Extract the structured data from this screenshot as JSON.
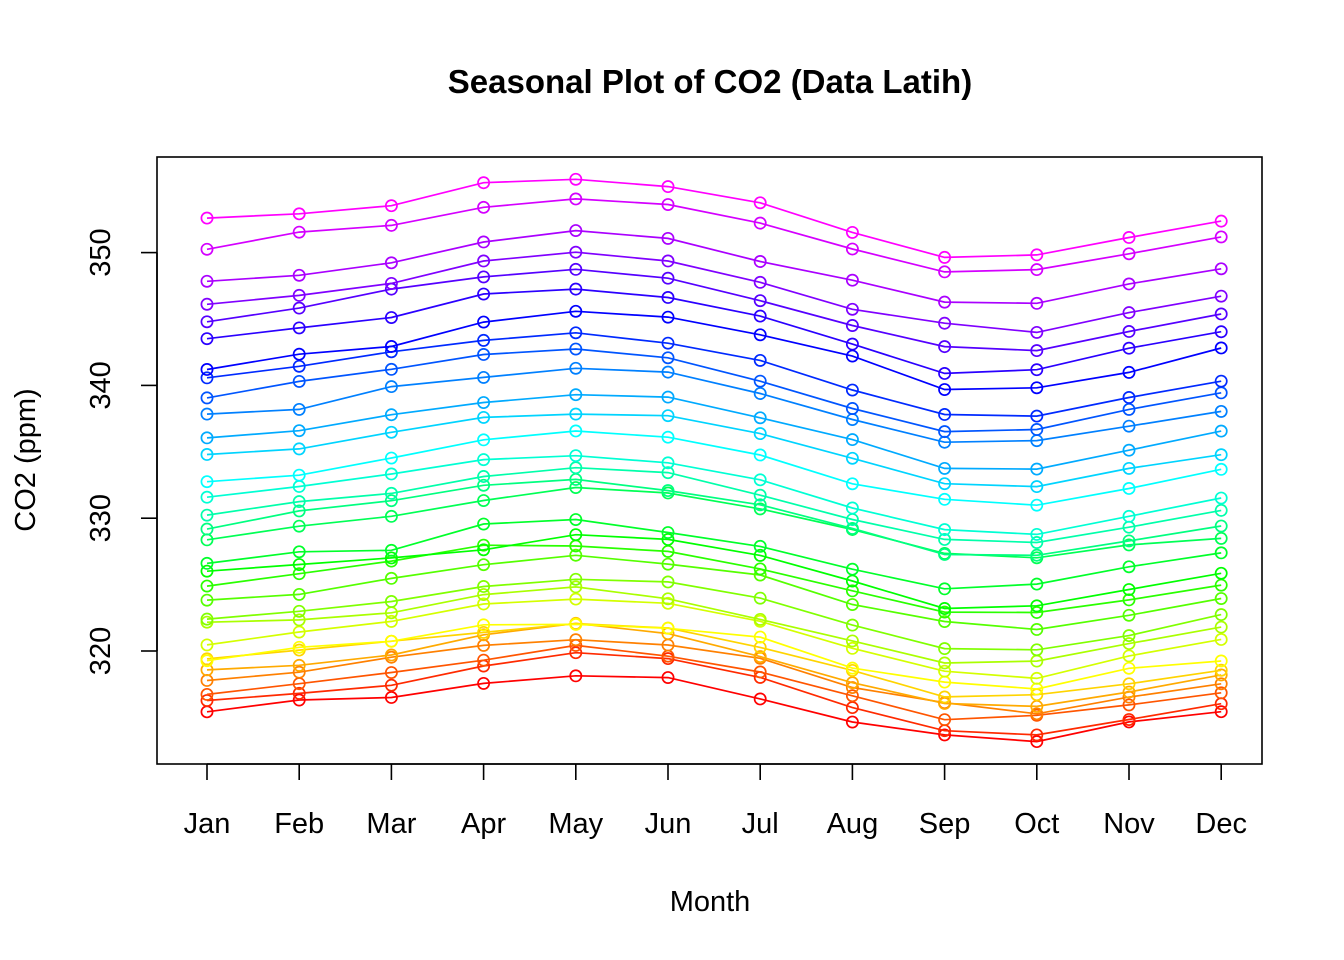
{
  "chart_data": {
    "type": "line",
    "title": "Seasonal Plot of CO2 (Data Latih)",
    "xlabel": "Month",
    "ylabel": "CO2 (ppm)",
    "categories": [
      "Jan",
      "Feb",
      "Mar",
      "Apr",
      "May",
      "Jun",
      "Jul",
      "Aug",
      "Sep",
      "Oct",
      "Nov",
      "Dec"
    ],
    "yticks": [
      320,
      330,
      340,
      350
    ],
    "ylim": [
      311.6,
      356.6
    ],
    "grid": false,
    "legend": "none",
    "palette": "rainbow (red → yellow → green → cyan → blue → magenta)",
    "series": [
      {
        "color": "#ff0000",
        "values": [
          315.42,
          316.31,
          316.5,
          317.56,
          318.13,
          318.0,
          316.39,
          314.65,
          313.68,
          313.18,
          314.66,
          315.43
        ]
      },
      {
        "color": "#ff2a00",
        "values": [
          316.27,
          316.81,
          317.42,
          318.87,
          319.87,
          319.43,
          318.01,
          315.74,
          314.0,
          313.68,
          314.84,
          316.03
        ]
      },
      {
        "color": "#ff5500",
        "values": [
          316.73,
          317.54,
          318.38,
          319.31,
          320.42,
          319.61,
          318.42,
          316.63,
          314.83,
          315.16,
          315.94,
          316.85
        ]
      },
      {
        "color": "#ff8000",
        "values": [
          317.78,
          318.4,
          319.53,
          320.42,
          320.85,
          320.45,
          319.45,
          317.25,
          316.11,
          315.27,
          316.53,
          317.53
        ]
      },
      {
        "color": "#ffaa00",
        "values": [
          318.58,
          318.92,
          319.7,
          321.22,
          322.08,
          321.31,
          319.58,
          317.61,
          316.05,
          315.83,
          316.91,
          318.2
        ]
      },
      {
        "color": "#ffd400",
        "values": [
          319.41,
          320.07,
          320.74,
          321.4,
          322.06,
          321.73,
          320.27,
          318.54,
          316.54,
          316.71,
          317.53,
          318.55
        ]
      },
      {
        "color": "#ffff00",
        "values": [
          319.27,
          320.28,
          320.73,
          321.97,
          322.0,
          321.71,
          321.05,
          318.71,
          317.66,
          317.14,
          318.7,
          319.25
        ]
      },
      {
        "color": "#d4ff00",
        "values": [
          320.46,
          321.43,
          322.23,
          323.54,
          323.91,
          323.59,
          322.24,
          320.2,
          318.48,
          317.94,
          319.63,
          320.87
        ]
      },
      {
        "color": "#aaff00",
        "values": [
          322.17,
          322.34,
          322.88,
          324.25,
          324.83,
          323.93,
          322.38,
          320.76,
          319.1,
          319.24,
          320.56,
          321.8
        ]
      },
      {
        "color": "#80ff00",
        "values": [
          322.4,
          322.99,
          323.73,
          324.86,
          325.4,
          325.2,
          323.98,
          321.95,
          320.18,
          320.09,
          321.16,
          322.74
        ]
      },
      {
        "color": "#55ff00",
        "values": [
          323.83,
          324.26,
          325.47,
          326.5,
          327.21,
          326.54,
          325.72,
          323.5,
          322.22,
          321.62,
          322.69,
          323.95
        ]
      },
      {
        "color": "#2aff00",
        "values": [
          324.89,
          325.82,
          326.77,
          327.97,
          327.91,
          327.5,
          326.18,
          324.53,
          322.93,
          322.9,
          323.85,
          324.96
        ]
      },
      {
        "color": "#00ff00",
        "values": [
          326.01,
          326.51,
          327.01,
          327.62,
          328.76,
          328.4,
          327.2,
          325.27,
          323.2,
          323.4,
          324.63,
          325.85
        ]
      },
      {
        "color": "#00ff2a",
        "values": [
          326.6,
          327.47,
          327.58,
          329.56,
          329.9,
          328.92,
          327.88,
          326.16,
          324.68,
          325.04,
          326.34,
          327.39
        ]
      },
      {
        "color": "#00ff55",
        "values": [
          328.37,
          329.4,
          330.14,
          331.33,
          332.31,
          331.9,
          330.7,
          329.15,
          327.35,
          327.02,
          327.99,
          328.48
        ]
      },
      {
        "color": "#00ff80",
        "values": [
          329.18,
          330.55,
          331.32,
          332.48,
          332.92,
          332.08,
          331.01,
          329.23,
          327.27,
          327.21,
          328.29,
          329.41
        ]
      },
      {
        "color": "#00ffaa",
        "values": [
          330.23,
          331.25,
          331.87,
          333.14,
          333.8,
          333.43,
          331.73,
          329.9,
          328.4,
          328.17,
          329.32,
          330.59
        ]
      },
      {
        "color": "#00ffd4",
        "values": [
          331.58,
          332.39,
          333.33,
          334.41,
          334.71,
          334.17,
          332.89,
          330.77,
          329.14,
          328.78,
          330.14,
          331.52
        ]
      },
      {
        "color": "#00ffff",
        "values": [
          332.75,
          333.24,
          334.53,
          335.9,
          336.57,
          336.1,
          334.76,
          332.59,
          331.42,
          330.98,
          332.24,
          333.68
        ]
      },
      {
        "color": "#00d4ff",
        "values": [
          334.8,
          335.22,
          336.47,
          337.59,
          337.84,
          337.72,
          336.37,
          334.51,
          332.6,
          332.38,
          333.75,
          334.78
        ]
      },
      {
        "color": "#00aaff",
        "values": [
          336.05,
          336.59,
          337.79,
          338.71,
          339.3,
          339.12,
          337.56,
          335.92,
          333.75,
          333.7,
          335.12,
          336.56
        ]
      },
      {
        "color": "#0080ff",
        "values": [
          337.84,
          338.19,
          339.91,
          340.6,
          341.29,
          341.0,
          339.39,
          337.43,
          335.72,
          335.84,
          336.93,
          338.04
        ]
      },
      {
        "color": "#0055ff",
        "values": [
          339.06,
          340.3,
          341.21,
          342.33,
          342.74,
          342.08,
          340.32,
          338.26,
          336.52,
          336.68,
          338.19,
          339.44
        ]
      },
      {
        "color": "#002aff",
        "values": [
          340.57,
          341.44,
          342.53,
          343.39,
          343.96,
          343.18,
          341.88,
          339.65,
          337.81,
          337.69,
          339.09,
          340.32
        ]
      },
      {
        "color": "#0000ff",
        "values": [
          341.2,
          342.35,
          342.93,
          344.77,
          345.58,
          345.14,
          343.81,
          342.21,
          339.69,
          339.82,
          340.98,
          342.82
        ]
      },
      {
        "color": "#2a00ff",
        "values": [
          343.52,
          344.33,
          345.11,
          346.88,
          347.25,
          346.62,
          345.22,
          343.11,
          340.9,
          341.18,
          342.8,
          344.04
        ]
      },
      {
        "color": "#5500ff",
        "values": [
          344.79,
          345.82,
          347.25,
          348.17,
          348.74,
          348.07,
          346.38,
          344.51,
          342.92,
          342.62,
          344.06,
          345.38
        ]
      },
      {
        "color": "#8000ff",
        "values": [
          346.11,
          346.78,
          347.68,
          349.37,
          350.03,
          349.37,
          347.76,
          345.73,
          344.68,
          343.99,
          345.48,
          346.72
        ]
      },
      {
        "color": "#aa00ff",
        "values": [
          347.84,
          348.29,
          349.23,
          350.8,
          351.66,
          351.07,
          349.33,
          347.92,
          346.27,
          346.18,
          347.64,
          348.78
        ]
      },
      {
        "color": "#d400ff",
        "values": [
          350.25,
          351.54,
          352.05,
          353.41,
          354.04,
          353.62,
          352.22,
          350.27,
          348.55,
          348.72,
          349.91,
          351.18
        ]
      },
      {
        "color": "#ff00ff",
        "values": [
          352.6,
          352.92,
          353.53,
          355.26,
          355.52,
          354.97,
          353.75,
          351.52,
          349.64,
          349.83,
          351.14,
          352.37
        ]
      }
    ]
  }
}
